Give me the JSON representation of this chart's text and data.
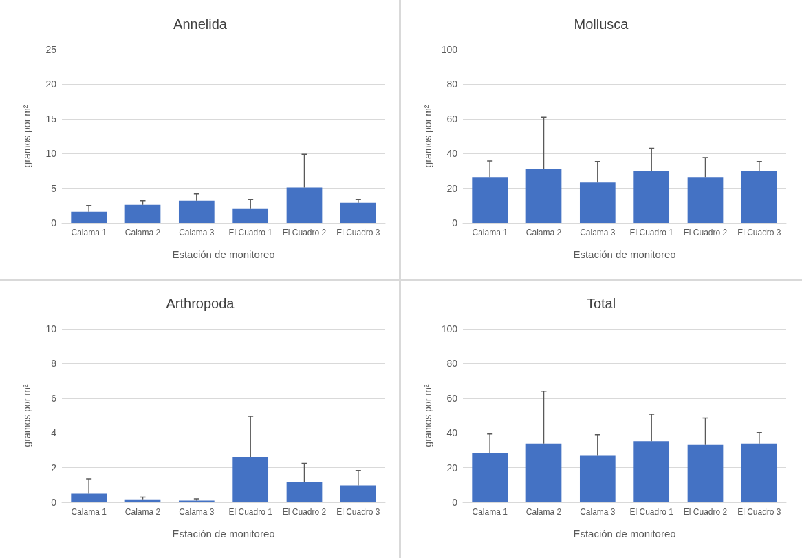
{
  "chart_data": [
    {
      "type": "bar",
      "title": "Annelida",
      "xlabel": "Estación de monitoreo",
      "ylabel": "gramos por m²",
      "categories": [
        "Calama 1",
        "Calama 2",
        "Calama 3",
        "El Cuadro 1",
        "El Cuadro 2",
        "El Cuadro 3"
      ],
      "values": [
        1.6,
        2.6,
        3.2,
        2.0,
        5.1,
        2.9
      ],
      "errors": [
        [
          1.6,
          2.5
        ],
        [
          2.6,
          3.2
        ],
        [
          3.2,
          4.2
        ],
        [
          2.0,
          3.4
        ],
        [
          5.1,
          9.9
        ],
        [
          2.9,
          3.4
        ]
      ],
      "color": "#4472c4",
      "ylim": [
        0,
        25
      ],
      "yticks": [
        0,
        5,
        10,
        15,
        20,
        25
      ],
      "grid": "y"
    },
    {
      "type": "bar",
      "title": "Mollusca",
      "xlabel": "Estación de monitoreo",
      "ylabel": "gramos por m²",
      "categories": [
        "Calama 1",
        "Calama 2",
        "Calama 3",
        "El Cuadro 1",
        "El Cuadro 2",
        "El Cuadro 3"
      ],
      "values": [
        26.5,
        31,
        23.3,
        30.2,
        26.5,
        29.8
      ],
      "errors": [
        [
          26.5,
          35.7
        ],
        [
          31,
          61
        ],
        [
          23.3,
          35.4
        ],
        [
          30.2,
          43.1
        ],
        [
          26.5,
          37.7
        ],
        [
          29.8,
          35.4
        ]
      ],
      "color": "#4472c4",
      "ylim": [
        0,
        100
      ],
      "yticks": [
        0,
        20,
        40,
        60,
        80,
        100
      ],
      "grid": "y"
    },
    {
      "type": "bar",
      "title": "Arthropoda",
      "xlabel": "Estación de monitoreo",
      "ylabel": "gramos por m²",
      "categories": [
        "Calama 1",
        "Calama 2",
        "Calama 3",
        "El Cuadro 1",
        "El Cuadro 2",
        "El Cuadro 3"
      ],
      "values": [
        0.5,
        0.17,
        0.1,
        2.62,
        1.16,
        0.97
      ],
      "errors": [
        [
          0.5,
          1.35
        ],
        [
          0.17,
          0.3
        ],
        [
          0.1,
          0.2
        ],
        [
          2.62,
          4.96
        ],
        [
          1.16,
          2.24
        ],
        [
          0.97,
          1.84
        ]
      ],
      "color": "#4472c4",
      "ylim": [
        0,
        10
      ],
      "yticks": [
        0,
        2,
        4,
        6,
        8,
        10
      ],
      "grid": "y"
    },
    {
      "type": "bar",
      "title": "Total",
      "xlabel": "Estación de monitoreo",
      "ylabel": "gramos por m²",
      "categories": [
        "Calama 1",
        "Calama 2",
        "Calama 3",
        "El Cuadro 1",
        "El Cuadro 2",
        "El Cuadro 3"
      ],
      "values": [
        28.6,
        33.8,
        26.8,
        35.2,
        33,
        33.8
      ],
      "errors": [
        [
          28.6,
          39.4
        ],
        [
          33.8,
          64
        ],
        [
          26.8,
          39
        ],
        [
          35.2,
          50.8
        ],
        [
          33,
          48.6
        ],
        [
          33.8,
          40.2
        ]
      ],
      "color": "#4472c4",
      "ylim": [
        0,
        100
      ],
      "yticks": [
        0,
        20,
        40,
        60,
        80,
        100
      ],
      "grid": "y"
    }
  ]
}
